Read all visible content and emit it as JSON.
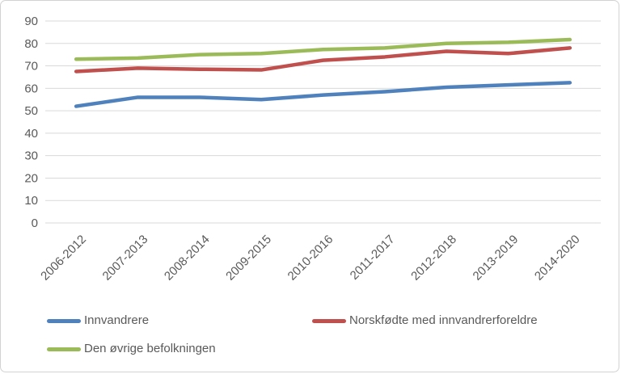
{
  "figure": {
    "background_color": "#ffffff",
    "border_color": "#d2d2d2"
  },
  "chart_data": {
    "type": "line",
    "title": "",
    "xlabel": "",
    "ylabel": "",
    "categories": [
      "2006-2012",
      "2007-2013",
      "2008-2014",
      "2009-2015",
      "2010-2016",
      "2011-2017",
      "2012-2018",
      "2013-2019",
      "2014-2020"
    ],
    "series": [
      {
        "name": "Innvandrere",
        "color": "#4F81BD",
        "values": [
          52,
          56,
          56,
          55,
          57,
          58.5,
          60.5,
          61.5,
          62.5
        ]
      },
      {
        "name": "Norskfødte med innvandrerforeldre",
        "color": "#C0504D",
        "values": [
          67.5,
          69,
          68.5,
          68.2,
          72.5,
          74,
          76.5,
          75.5,
          78
        ]
      },
      {
        "name": "Den øvrige befolkningen",
        "color": "#9BBB59",
        "values": [
          73,
          73.5,
          75,
          75.5,
          77.3,
          78,
          80,
          80.5,
          81.7
        ]
      }
    ],
    "ylim": [
      0,
      90
    ],
    "yticks": [
      0,
      10,
      20,
      30,
      40,
      50,
      60,
      70,
      80,
      90
    ],
    "grid": "horizontal",
    "gridline_color": "#D9D9D9",
    "tick_label_color": "#595959",
    "x_tick_rotation_deg": -45,
    "legend_position": "bottom-left, two rows"
  }
}
